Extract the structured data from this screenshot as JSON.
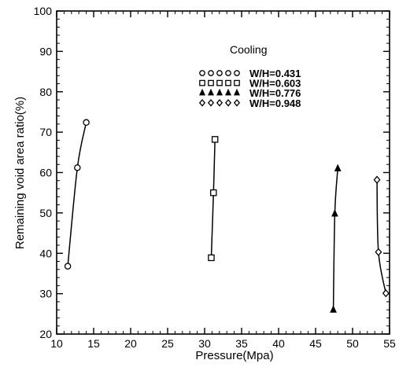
{
  "chart_data": {
    "type": "scatter",
    "title": "",
    "xlabel": "Pressure(Mpa)",
    "ylabel": "Remaining void area ratio(%)",
    "xlim": [
      10,
      55
    ],
    "ylim": [
      20,
      100
    ],
    "xticks": [
      "10",
      "15",
      "20",
      "25",
      "30",
      "35",
      "40",
      "45",
      "50",
      "55"
    ],
    "yticks": [
      "20",
      "30",
      "40",
      "50",
      "60",
      "70",
      "80",
      "90",
      "100"
    ],
    "grid": false,
    "legend": {
      "title": "Cooling",
      "placement": "upper-center"
    },
    "series": [
      {
        "name": "W/H=0.431",
        "marker": "circle",
        "points": [
          {
            "x": 11.5,
            "y": 36.8
          },
          {
            "x": 12.8,
            "y": 61.2
          },
          {
            "x": 14.0,
            "y": 72.4
          }
        ]
      },
      {
        "name": "W/H=0.603",
        "marker": "square",
        "points": [
          {
            "x": 30.9,
            "y": 38.9
          },
          {
            "x": 31.2,
            "y": 55.0
          },
          {
            "x": 31.4,
            "y": 68.2
          }
        ]
      },
      {
        "name": "W/H=0.776",
        "marker": "triangle",
        "points": [
          {
            "x": 47.4,
            "y": 26.0
          },
          {
            "x": 47.6,
            "y": 49.8
          },
          {
            "x": 48.0,
            "y": 61.0
          }
        ]
      },
      {
        "name": "W/H=0.948",
        "marker": "diamond",
        "points": [
          {
            "x": 53.3,
            "y": 58.2
          },
          {
            "x": 53.5,
            "y": 40.3
          },
          {
            "x": 54.5,
            "y": 30.1
          }
        ]
      }
    ]
  }
}
